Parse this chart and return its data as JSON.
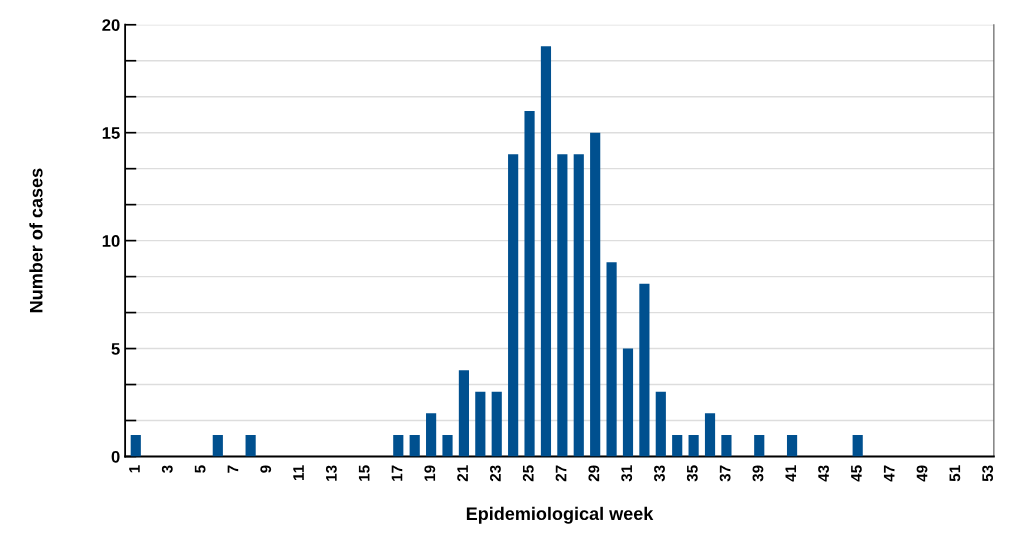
{
  "chart_data": {
    "type": "bar",
    "xlabel": "Epidemiological week",
    "ylabel": "Number of cases",
    "categories": [
      "1",
      null,
      "3",
      null,
      "5",
      null,
      "7",
      null,
      "9",
      null,
      "11",
      null,
      "13",
      null,
      "15",
      null,
      "17",
      null,
      "19",
      null,
      "21",
      null,
      "23",
      null,
      "25",
      null,
      "27",
      null,
      "29",
      null,
      "31",
      null,
      "33",
      null,
      "35",
      null,
      "37",
      null,
      "39",
      null,
      "41",
      null,
      "43",
      null,
      "45",
      null,
      "47",
      null,
      "49",
      null,
      "51",
      null,
      "53"
    ],
    "values": [
      1,
      0,
      0,
      0,
      0,
      1,
      0,
      1,
      0,
      0,
      0,
      0,
      0,
      0,
      0,
      0,
      1,
      1,
      2,
      1,
      4,
      3,
      3,
      14,
      16,
      19,
      14,
      14,
      15,
      9,
      5,
      8,
      3,
      1,
      1,
      2,
      1,
      0,
      1,
      0,
      1,
      0,
      0,
      0,
      1,
      0,
      0,
      0,
      0,
      0,
      0,
      0,
      0
    ],
    "color": "#00508f",
    "ylim": [
      0,
      20
    ],
    "yticks": [
      0,
      {
        "value": 1.667,
        "label": null
      },
      {
        "value": 3.333,
        "label": null
      },
      5,
      {
        "value": 6.667,
        "label": null
      },
      {
        "value": 8.333,
        "label": null
      },
      10,
      {
        "value": 11.667,
        "label": null
      },
      {
        "value": 13.333,
        "label": null
      },
      15,
      {
        "value": 16.667,
        "label": null
      },
      {
        "value": 18.333,
        "label": null
      },
      20
    ],
    "grid": "y"
  }
}
